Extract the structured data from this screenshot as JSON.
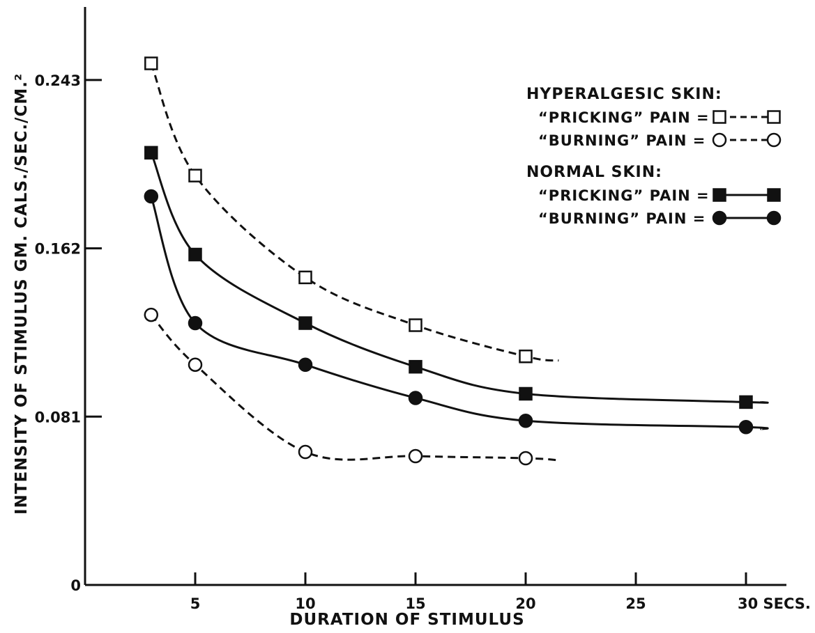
{
  "chart_data": {
    "type": "line",
    "title": "",
    "xlabel": "DURATION OF STIMULUS",
    "ylabel": "INTENSITY OF STIMULUS  GM. CALS./SEC./CM.²",
    "xlim": [
      0,
      32.5
    ],
    "ylim": [
      0,
      0.27
    ],
    "x_ticks": [
      5,
      10,
      15,
      20,
      25,
      30
    ],
    "x_tick_labels": [
      "5",
      "10",
      "15",
      "20",
      "25",
      "30 SECS."
    ],
    "y_ticks": [
      0,
      0.081,
      0.162,
      0.243
    ],
    "y_tick_labels": [
      "0",
      "0.081",
      "0.162",
      "0.243"
    ],
    "grid": false,
    "legend_position": "top-right",
    "legend": {
      "groups": [
        {
          "heading": "HYPERALGESIC SKIN:",
          "entries": [
            {
              "label": "“PRICKING” PAIN  =",
              "series": 0
            },
            {
              "label": "“BURNING” PAIN  =",
              "series": 1
            }
          ]
        },
        {
          "heading": "NORMAL SKIN:",
          "entries": [
            {
              "label": "“PRICKING” PAIN  =",
              "series": 2
            },
            {
              "label": "“BURNING” PAIN  =",
              "series": 3
            }
          ]
        }
      ]
    },
    "series": [
      {
        "marker": "square-open",
        "line": "dashed",
        "x": [
          3,
          5,
          10,
          15,
          20
        ],
        "y": [
          0.251,
          0.197,
          0.148,
          0.125,
          0.11
        ],
        "curve_end": [
          21.5,
          0.108
        ]
      },
      {
        "marker": "circle-open",
        "line": "dashed",
        "x": [
          3,
          5,
          10,
          15,
          20
        ],
        "y": [
          0.13,
          0.106,
          0.064,
          0.062,
          0.061
        ],
        "curve_end": [
          21.5,
          0.06
        ]
      },
      {
        "marker": "square-filled",
        "line": "solid",
        "x": [
          3,
          5,
          10,
          15,
          20,
          30
        ],
        "y": [
          0.208,
          0.159,
          0.126,
          0.105,
          0.092,
          0.088
        ],
        "curve_end": [
          30.7,
          0.088
        ]
      },
      {
        "marker": "circle-filled",
        "line": "solid",
        "x": [
          3,
          5,
          10,
          15,
          20,
          30
        ],
        "y": [
          0.187,
          0.126,
          0.106,
          0.09,
          0.079,
          0.076
        ],
        "curve_end": [
          30.7,
          0.075
        ]
      }
    ]
  }
}
